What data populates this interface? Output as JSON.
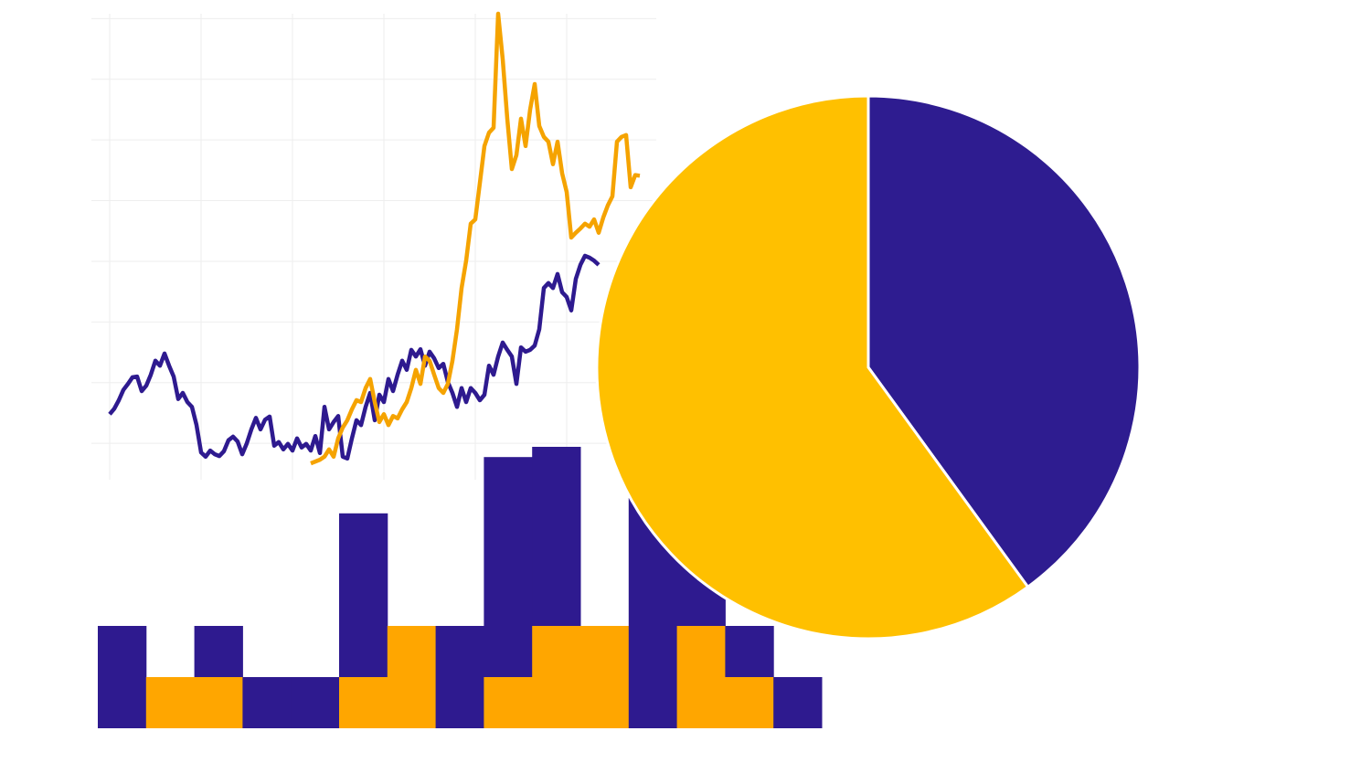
{
  "chart_data": [
    {
      "type": "line",
      "x": [
        0,
        1,
        2,
        3,
        4,
        5,
        6,
        7,
        8,
        9,
        10,
        11,
        12,
        13,
        14,
        15,
        16,
        17,
        18,
        19,
        20,
        21,
        22,
        23,
        24,
        25,
        26,
        27,
        28,
        29,
        30,
        31,
        32,
        33,
        34,
        35,
        36,
        37,
        38,
        39,
        40,
        41,
        42,
        43,
        44,
        45,
        46,
        47,
        48,
        49,
        50,
        51,
        52,
        53,
        54,
        55,
        56,
        57,
        58,
        59,
        60,
        61,
        62,
        63,
        64,
        65,
        66,
        67,
        68,
        69,
        70,
        71,
        72,
        73,
        74,
        75,
        76,
        77,
        78,
        79,
        80,
        81,
        82,
        83,
        84,
        85,
        86,
        87,
        88,
        89,
        90,
        91,
        92,
        93,
        94,
        95,
        96,
        97,
        98,
        99,
        100,
        101,
        102,
        103,
        104,
        105,
        106,
        107,
        108,
        109,
        110,
        111,
        112,
        113,
        114,
        115,
        116
      ],
      "series": [
        {
          "color": "#2e1a8f",
          "values": [
            1.48,
            1.57,
            1.71,
            1.88,
            1.98,
            2.09,
            2.1,
            1.86,
            1.95,
            2.13,
            2.36,
            2.28,
            2.48,
            2.28,
            2.1,
            1.73,
            1.83,
            1.68,
            1.6,
            1.3,
            0.85,
            0.78,
            0.88,
            0.82,
            0.79,
            0.87,
            1.05,
            1.11,
            1.03,
            0.82,
            1.0,
            1.23,
            1.42,
            1.23,
            1.39,
            1.44,
            0.96,
            1.02,
            0.9,
            0.99,
            0.88,
            1.08,
            0.93,
            0.99,
            0.88,
            1.12,
            0.84,
            1.6,
            1.23,
            1.35,
            1.45,
            0.78,
            0.75,
            1.08,
            1.38,
            1.3,
            1.6,
            1.83,
            1.38,
            1.8,
            1.68,
            2.06,
            1.86,
            2.13,
            2.36,
            2.21,
            2.54,
            2.43,
            2.55,
            2.28,
            2.51,
            2.4,
            2.24,
            2.31,
            2.01,
            1.83,
            1.6,
            1.91,
            1.68,
            1.91,
            1.83,
            1.71,
            1.8,
            2.28,
            2.13,
            2.43,
            2.66,
            2.54,
            2.43,
            1.98,
            2.58,
            2.51,
            2.54,
            2.61,
            2.88,
            3.56,
            3.64,
            3.56,
            3.79,
            3.49,
            3.41,
            3.19,
            3.71,
            3.94,
            4.09,
            4.06,
            4.01,
            3.94,
            null,
            null,
            null,
            null,
            null,
            null,
            null,
            null,
            null
          ]
        },
        {
          "color": "#f5a300",
          "values": [
            null,
            null,
            null,
            null,
            null,
            null,
            null,
            null,
            null,
            null,
            null,
            null,
            null,
            null,
            null,
            null,
            null,
            null,
            null,
            null,
            null,
            null,
            null,
            null,
            null,
            null,
            null,
            null,
            null,
            null,
            null,
            null,
            null,
            null,
            null,
            null,
            null,
            null,
            null,
            null,
            null,
            null,
            null,
            null,
            0.67,
            0.7,
            0.73,
            0.78,
            0.9,
            0.78,
            1.08,
            1.26,
            1.38,
            1.56,
            1.71,
            1.68,
            1.91,
            2.06,
            1.68,
            1.35,
            1.48,
            1.3,
            1.45,
            1.41,
            1.56,
            1.68,
            1.91,
            2.21,
            1.98,
            2.43,
            2.36,
            2.13,
            1.91,
            1.83,
            1.98,
            2.36,
            2.88,
            3.56,
            4.01,
            4.62,
            4.69,
            5.29,
            5.9,
            6.12,
            6.2,
            8.08,
            7.33,
            6.35,
            5.52,
            5.75,
            6.35,
            5.9,
            6.5,
            6.92,
            6.23,
            6.05,
            5.97,
            5.6,
            5.97,
            5.45,
            5.14,
            4.39,
            4.47,
            4.54,
            4.62,
            4.57,
            4.69,
            4.47,
            4.72,
            4.92,
            5.07,
            5.97,
            6.05,
            6.08,
            5.22,
            5.42,
            5.41
          ]
        }
      ],
      "xlim": [
        -4,
        119.6
      ],
      "xticks": [
        0,
        20,
        40,
        60,
        80,
        100
      ],
      "ylim": [
        0.4,
        8.08
      ],
      "yticks": [
        1,
        2,
        3,
        4,
        5,
        6,
        7,
        8
      ],
      "grid": true
    },
    {
      "type": "bar",
      "stacked": true,
      "categories": [
        null,
        null,
        null,
        null,
        null,
        null,
        null,
        null,
        null,
        null,
        null,
        null,
        null,
        null,
        null
      ],
      "series": [
        {
          "color": "#ffa600",
          "values": [
            0,
            1,
            1,
            0,
            0,
            1,
            2,
            0,
            1,
            2,
            2,
            0,
            2,
            1,
            0
          ]
        },
        {
          "color": "#2e1a8f",
          "values": [
            2,
            0,
            1,
            1,
            1,
            3.2,
            0,
            2,
            4.3,
            3.5,
            0,
            4.5,
            1.5,
            1,
            1
          ]
        }
      ],
      "ylim": [
        0,
        6
      ]
    },
    {
      "type": "pie",
      "values": [
        40,
        60
      ],
      "colors": [
        "#2e1c90",
        "#ffc000"
      ]
    }
  ]
}
